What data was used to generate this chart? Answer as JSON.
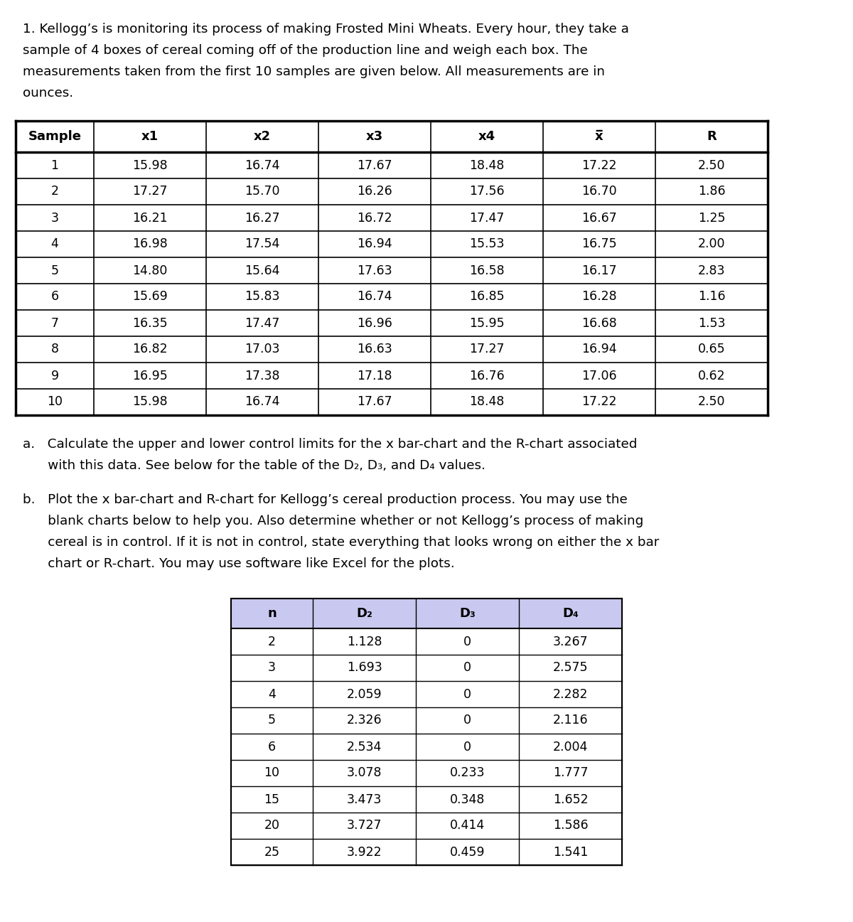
{
  "intro_lines": [
    "1. Kellogg’s is monitoring its process of making Frosted Mini Wheats. Every hour, they take a",
    "sample of 4 boxes of cereal coming off of the production line and weigh each box. The",
    "measurements taken from the first 10 samples are given below. All measurements are in",
    "ounces."
  ],
  "table1_headers": [
    "Sample",
    "x1",
    "x2",
    "x3",
    "x4",
    "x̅",
    "R"
  ],
  "table1_data": [
    [
      1,
      15.98,
      16.74,
      17.67,
      18.48,
      17.22,
      2.5
    ],
    [
      2,
      17.27,
      15.7,
      16.26,
      17.56,
      16.7,
      1.86
    ],
    [
      3,
      16.21,
      16.27,
      16.72,
      17.47,
      16.67,
      1.25
    ],
    [
      4,
      16.98,
      17.54,
      16.94,
      15.53,
      16.75,
      2.0
    ],
    [
      5,
      14.8,
      15.64,
      17.63,
      16.58,
      16.17,
      2.83
    ],
    [
      6,
      15.69,
      15.83,
      16.74,
      16.85,
      16.28,
      1.16
    ],
    [
      7,
      16.35,
      17.47,
      16.96,
      15.95,
      16.68,
      1.53
    ],
    [
      8,
      16.82,
      17.03,
      16.63,
      17.27,
      16.94,
      0.65
    ],
    [
      9,
      16.95,
      17.38,
      17.18,
      16.76,
      17.06,
      0.62
    ],
    [
      10,
      15.98,
      16.74,
      17.67,
      18.48,
      17.22,
      2.5
    ]
  ],
  "part_a_lines": [
    "a.   Calculate the upper and lower control limits for the x bar-chart and the R-chart associated",
    "      with this data. See below for the table of the D₂, D₃, and D₄ values."
  ],
  "part_b_lines": [
    "b.   Plot the x bar-chart and R-chart for Kellogg’s cereal production process. You may use the",
    "      blank charts below to help you. Also determine whether or not Kellogg’s process of making",
    "      cereal is in control. If it is not in control, state everything that looks wrong on either the x bar",
    "      chart or R-chart. You may use software like Excel for the plots."
  ],
  "table2_headers": [
    "n",
    "D₂",
    "D₃",
    "D₄"
  ],
  "table2_data": [
    [
      "2",
      "1.128",
      "0",
      "3.267"
    ],
    [
      "3",
      "1.693",
      "0",
      "2.575"
    ],
    [
      "4",
      "2.059",
      "0",
      "2.282"
    ],
    [
      "5",
      "2.326",
      "0",
      "2.116"
    ],
    [
      "6",
      "2.534",
      "0",
      "2.004"
    ],
    [
      "10",
      "3.078",
      "0.233",
      "1.777"
    ],
    [
      "15",
      "3.473",
      "0.348",
      "1.652"
    ],
    [
      "20",
      "3.727",
      "0.414",
      "1.586"
    ],
    [
      "25",
      "3.922",
      "0.459",
      "1.541"
    ]
  ],
  "bg_color": "#ffffff",
  "header2_bg": "#c8c8f0",
  "font_body": 13.2,
  "font_table": 12.5,
  "font_header": 13.0
}
